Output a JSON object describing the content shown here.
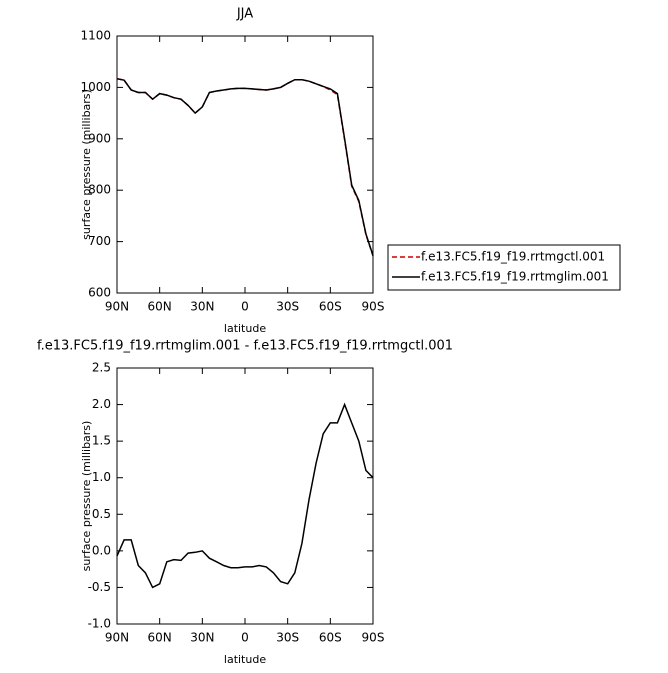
{
  "chart_data": [
    {
      "type": "line",
      "title": "JJA",
      "x_label": "latitude",
      "y_label": "surface pressure (millibars)",
      "x": [
        90,
        85,
        80,
        75,
        70,
        65,
        60,
        55,
        50,
        45,
        40,
        35,
        30,
        25,
        20,
        15,
        10,
        5,
        0,
        -5,
        -10,
        -15,
        -20,
        -25,
        -30,
        -35,
        -40,
        -45,
        -50,
        -55,
        -60,
        -65,
        -70,
        -75,
        -80,
        -85,
        -90
      ],
      "series": [
        {
          "name": "f.e13.FC5.f19_f19.rrtmgctl.001",
          "color": "#cc0000",
          "dashed": true,
          "values": [
            1017,
            1014,
            995,
            990,
            990,
            977,
            988,
            985,
            980,
            977,
            965,
            950,
            962,
            990,
            993,
            995,
            997,
            998,
            998,
            997,
            996,
            995,
            997,
            1000,
            1008,
            1015,
            1015,
            1012,
            1007,
            1002,
            995,
            986,
            898,
            808,
            778,
            714,
            672
          ]
        },
        {
          "name": "f.e13.FC5.f19_f19.rrtmglim.001",
          "color": "#000000",
          "dashed": false,
          "values": [
            1017,
            1014,
            995,
            990,
            990,
            977,
            988,
            985,
            980,
            977,
            965,
            950,
            962,
            990,
            993,
            995,
            997,
            998,
            998,
            997,
            996,
            995,
            997,
            1000,
            1008,
            1015,
            1015,
            1012,
            1007,
            1002,
            997,
            988,
            900,
            810,
            780,
            715,
            673
          ]
        }
      ],
      "xlim": [
        90,
        -90
      ],
      "xticks": [
        {
          "value": 90,
          "label": "90N"
        },
        {
          "value": 60,
          "label": "60N"
        },
        {
          "value": 30,
          "label": "30N"
        },
        0,
        {
          "value": -30,
          "label": "30S"
        },
        {
          "value": -60,
          "label": "60S"
        },
        {
          "value": -90,
          "label": "90S"
        }
      ],
      "ylim": [
        600,
        1100
      ],
      "yticks": [
        600,
        700,
        800,
        900,
        1000,
        1100
      ],
      "legend": "right"
    },
    {
      "type": "line",
      "title": "f.e13.FC5.f19_f19.rrtmglim.001 - f.e13.FC5.f19_f19.rrtmgctl.001",
      "x_label": "latitude",
      "y_label": "surface pressure (millibars)",
      "x": [
        90,
        85,
        80,
        75,
        70,
        65,
        60,
        55,
        50,
        45,
        40,
        35,
        30,
        25,
        20,
        15,
        10,
        5,
        0,
        -5,
        -10,
        -15,
        -20,
        -25,
        -30,
        -35,
        -40,
        -45,
        -50,
        -55,
        -60,
        -65,
        -70,
        -75,
        -80,
        -85,
        -90
      ],
      "series": [
        {
          "color": "#000000",
          "dashed": false,
          "values": [
            -0.07,
            0.15,
            0.15,
            -0.2,
            -0.3,
            -0.5,
            -0.45,
            -0.15,
            -0.12,
            -0.13,
            -0.03,
            -0.02,
            0.0,
            -0.1,
            -0.15,
            -0.2,
            -0.23,
            -0.23,
            -0.22,
            -0.22,
            -0.2,
            -0.22,
            -0.3,
            -0.42,
            -0.45,
            -0.3,
            0.1,
            0.7,
            1.2,
            1.6,
            1.75,
            1.75,
            2.0,
            1.75,
            1.5,
            1.1,
            1.0
          ]
        }
      ],
      "xlim": [
        90,
        -90
      ],
      "xticks": [
        {
          "value": 90,
          "label": "90N"
        },
        {
          "value": 60,
          "label": "60N"
        },
        {
          "value": 30,
          "label": "30N"
        },
        0,
        {
          "value": -30,
          "label": "30S"
        },
        {
          "value": -60,
          "label": "60S"
        },
        {
          "value": -90,
          "label": "90S"
        }
      ],
      "ylim": [
        -1,
        2.5
      ],
      "yticks": [
        {
          "value": -1,
          "label": "-1.0"
        },
        {
          "value": -0.5,
          "label": "-0.5"
        },
        {
          "value": 0,
          "label": "0.0"
        },
        0.5,
        {
          "value": 1,
          "label": "1.0"
        },
        1.5,
        {
          "value": 2,
          "label": "2.0"
        },
        2.5
      ]
    }
  ]
}
